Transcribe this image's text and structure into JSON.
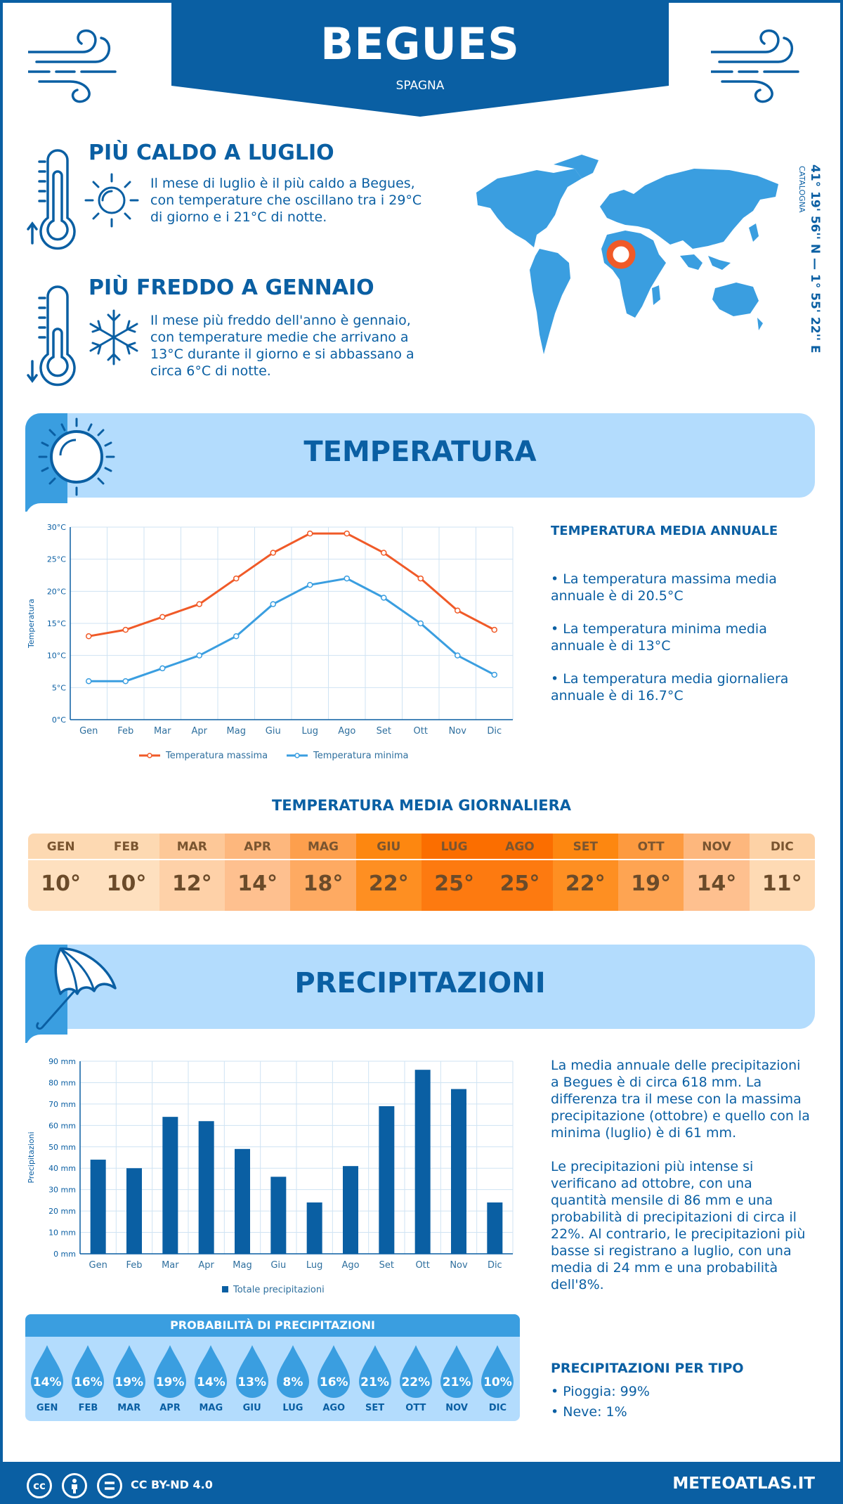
{
  "header": {
    "title": "BEGUES",
    "subtitle": "SPAGNA"
  },
  "hottest": {
    "title": "PIÙ CALDO A LUGLIO",
    "text": "Il mese di luglio è il più caldo a Begues, con temperature che oscillano tra i 29°C di giorno e i 21°C di notte."
  },
  "coldest": {
    "title": "PIÙ FREDDO A GENNAIO",
    "text": "Il mese più freddo dell'anno è gennaio, con temperature medie che arrivano a 13°C durante il giorno e si abbassano a circa 6°C di notte."
  },
  "location": {
    "coords": "41° 19' 56'' N — 1° 55' 22'' E",
    "region": "CATALOGNA"
  },
  "temperature_section": {
    "title": "TEMPERATURA",
    "annual_title": "TEMPERATURA MEDIA ANNUALE",
    "bullets": [
      "• La temperatura massima media annuale è di 20.5°C",
      "• La temperatura minima media annuale è di 13°C",
      "• La temperatura media giornaliera annuale è di 16.7°C"
    ],
    "daily_title": "TEMPERATURA MEDIA GIORNALIERA",
    "daily": [
      {
        "m": "GEN",
        "v": "10°",
        "bg": "#fdd9b2",
        "bg2": "#fee0bf"
      },
      {
        "m": "FEB",
        "v": "10°",
        "bg": "#fdd9b2",
        "bg2": "#fee0bf"
      },
      {
        "m": "MAR",
        "v": "12°",
        "bg": "#fdc898",
        "bg2": "#fed1a8"
      },
      {
        "m": "APR",
        "v": "14°",
        "bg": "#fdb77d",
        "bg2": "#fec08f"
      },
      {
        "m": "MAG",
        "v": "18°",
        "bg": "#fd9f4d",
        "bg2": "#feaa62"
      },
      {
        "m": "GIU",
        "v": "22°",
        "bg": "#fd8710",
        "bg2": "#fe8f22"
      },
      {
        "m": "LUG",
        "v": "25°",
        "bg": "#fb6e00",
        "bg2": "#fd7a10"
      },
      {
        "m": "AGO",
        "v": "25°",
        "bg": "#fb6e00",
        "bg2": "#fd7a10"
      },
      {
        "m": "SET",
        "v": "22°",
        "bg": "#fd8710",
        "bg2": "#fe8f22"
      },
      {
        "m": "OTT",
        "v": "19°",
        "bg": "#fd9a3f",
        "bg2": "#fea452"
      },
      {
        "m": "NOV",
        "v": "14°",
        "bg": "#fdb77d",
        "bg2": "#fec08f"
      },
      {
        "m": "DIC",
        "v": "11°",
        "bg": "#fdd2a6",
        "bg2": "#fedab4"
      }
    ]
  },
  "precip_section": {
    "title": "PRECIPITAZIONI",
    "text1": "La media annuale delle precipitazioni a Begues è di circa 618 mm. La differenza tra il mese con la massima precipitazione (ottobre) e quello con la minima (luglio) è di 61 mm.",
    "text2": "Le precipitazioni più intense si verificano ad ottobre, con una quantità mensile di 86 mm e una probabilità di precipitazioni di circa il 22%. Al contrario, le precipitazioni più basse si registrano a luglio, con una media di 24 mm e una probabilità dell'8%.",
    "prob_title": "PROBABILITÀ DI PRECIPITAZIONI",
    "prob": [
      {
        "m": "GEN",
        "p": "14%"
      },
      {
        "m": "FEB",
        "p": "16%"
      },
      {
        "m": "MAR",
        "p": "19%"
      },
      {
        "m": "APR",
        "p": "19%"
      },
      {
        "m": "MAG",
        "p": "14%"
      },
      {
        "m": "GIU",
        "p": "13%"
      },
      {
        "m": "LUG",
        "p": "8%"
      },
      {
        "m": "AGO",
        "p": "16%"
      },
      {
        "m": "SET",
        "p": "21%"
      },
      {
        "m": "OTT",
        "p": "22%"
      },
      {
        "m": "NOV",
        "p": "21%"
      },
      {
        "m": "DIC",
        "p": "10%"
      }
    ],
    "type_title": "PRECIPITAZIONI PER TIPO",
    "types": [
      "• Pioggia: 99%",
      "• Neve: 1%"
    ]
  },
  "footer": {
    "license": "CC BY-ND 4.0",
    "site": "METEOATLAS.IT"
  },
  "colors": {
    "brand": "#0a5fa3",
    "max_line": "#f05a28",
    "min_line": "#3a9ee0",
    "bar": "#0a5fa3",
    "band": "#b3dcfd"
  },
  "chart_data": [
    {
      "type": "line",
      "categories": [
        "Gen",
        "Feb",
        "Mar",
        "Apr",
        "Mag",
        "Giu",
        "Lug",
        "Ago",
        "Set",
        "Ott",
        "Nov",
        "Dic"
      ],
      "series": [
        {
          "name": "Temperatura massima",
          "values": [
            13,
            14,
            16,
            18,
            22,
            26,
            29,
            29,
            26,
            22,
            17,
            14
          ]
        },
        {
          "name": "Temperatura minima",
          "values": [
            6,
            6,
            8,
            10,
            13,
            18,
            21,
            22,
            19,
            15,
            10,
            7
          ]
        }
      ],
      "ylabel": "Temperatura",
      "yticks": [
        "0°C",
        "5°C",
        "10°C",
        "15°C",
        "20°C",
        "25°C",
        "30°C"
      ],
      "ylim": [
        0,
        30
      ],
      "grid": true,
      "legend": "bottom"
    },
    {
      "type": "bar",
      "categories": [
        "Gen",
        "Feb",
        "Mar",
        "Apr",
        "Mag",
        "Giu",
        "Lug",
        "Ago",
        "Set",
        "Ott",
        "Nov",
        "Dic"
      ],
      "series": [
        {
          "name": "Totale precipitazioni",
          "values": [
            44,
            40,
            64,
            62,
            49,
            36,
            24,
            41,
            69,
            86,
            77,
            24
          ]
        }
      ],
      "ylabel": "Precipitazioni",
      "yticks": [
        "0 mm",
        "10 mm",
        "20 mm",
        "30 mm",
        "40 mm",
        "50 mm",
        "60 mm",
        "70 mm",
        "80 mm",
        "90 mm"
      ],
      "ylim": [
        0,
        90
      ],
      "grid": true,
      "legend": "bottom"
    }
  ]
}
